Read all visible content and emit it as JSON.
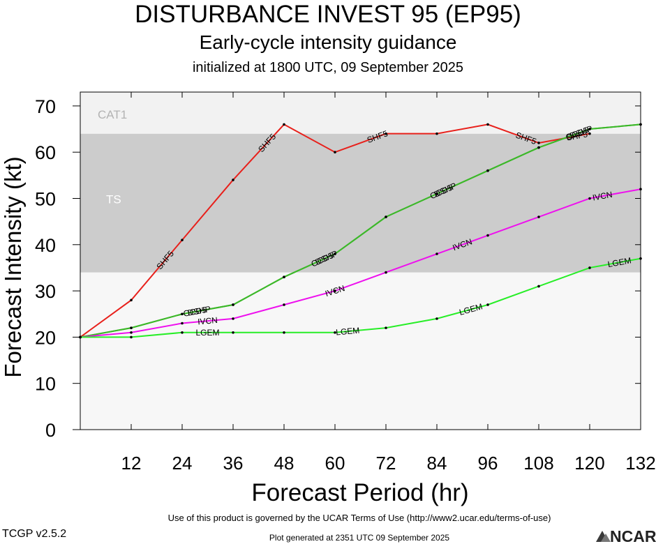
{
  "header": {
    "title": "DISTURBANCE INVEST 95 (EP95)",
    "subtitle": "Early-cycle intensity guidance",
    "initialized": "initialized at 1800 UTC, 09 September 2025"
  },
  "footer": {
    "terms": "Use of this product is governed by the UCAR Terms of Use (http://www2.ucar.edu/terms-of-use)",
    "version": "TCGP v2.5.2",
    "generated": "Plot generated at 2351 UTC   09 September 2025",
    "logo_text": "NCAR"
  },
  "chart_data": {
    "type": "line",
    "xlabel": "Forecast Period (hr)",
    "ylabel": "Forecast Intensity (kt)",
    "xlim": [
      0,
      132
    ],
    "ylim": [
      0,
      70
    ],
    "xticks": [
      12,
      24,
      36,
      48,
      60,
      72,
      84,
      96,
      108,
      120,
      132
    ],
    "yticks": [
      0,
      10,
      20,
      30,
      40,
      50,
      60,
      70
    ],
    "bands": [
      {
        "label": "TS",
        "from": 34,
        "to": 64,
        "color": "#cccccc"
      },
      {
        "label": "CAT1",
        "from": 64,
        "to": 73,
        "color": "#f2f2f2"
      }
    ],
    "series": [
      {
        "name": "SHF5",
        "color": "#e8201b",
        "x": [
          0,
          12,
          24,
          36,
          48,
          60,
          72,
          84,
          96,
          108,
          120
        ],
        "y": [
          20,
          28,
          41,
          54,
          66,
          60,
          64,
          64,
          66,
          62,
          64
        ],
        "label_x": [
          20,
          44,
          70,
          105,
          117
        ]
      },
      {
        "name": "DSHP",
        "color": "#3cb829",
        "x": [
          0,
          12,
          24,
          36,
          48,
          60,
          72,
          84,
          96,
          108,
          120,
          132
        ],
        "y": [
          20,
          22,
          25,
          27,
          33,
          38,
          46,
          51,
          56,
          61,
          65,
          66
        ],
        "label_x": [
          28,
          58,
          86,
          118
        ]
      },
      {
        "name": "OCD5",
        "color": "#3cb829",
        "x": [
          0,
          12,
          24,
          36,
          48,
          60,
          72,
          84,
          96,
          108,
          120,
          132
        ],
        "y": [
          20,
          22,
          25,
          27,
          33,
          38,
          46,
          51,
          56,
          61,
          65,
          66
        ],
        "label_x": [
          27,
          57,
          85,
          117
        ]
      },
      {
        "name": "IVCN",
        "color": "#ee10ee",
        "x": [
          0,
          12,
          24,
          36,
          48,
          60,
          72,
          84,
          96,
          108,
          120,
          132
        ],
        "y": [
          20,
          21,
          23,
          24,
          27,
          30,
          34,
          38,
          42,
          46,
          50,
          52
        ],
        "label_x": [
          30,
          60,
          90,
          123
        ]
      },
      {
        "name": "LGEM",
        "color": "#27ee27",
        "x": [
          0,
          12,
          24,
          36,
          48,
          60,
          72,
          84,
          96,
          108,
          120,
          132
        ],
        "y": [
          20,
          20,
          21,
          21,
          21,
          21,
          22,
          24,
          27,
          31,
          35,
          37
        ],
        "label_x": [
          30,
          63,
          92,
          127
        ]
      }
    ]
  }
}
